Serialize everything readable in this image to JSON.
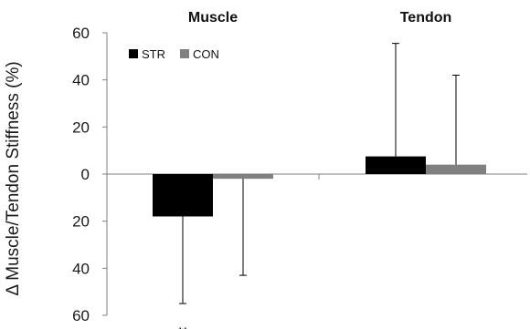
{
  "chart_data": {
    "type": "bar",
    "categories": [
      "Muscle",
      "Tendon"
    ],
    "series": [
      {
        "name": "STR",
        "color": "#000000",
        "values": [
          -18,
          7.5
        ],
        "error_low": [
          37,
          0
        ],
        "error_high": [
          0,
          48
        ]
      },
      {
        "name": "CON",
        "color": "#808080",
        "values": [
          -2,
          4
        ],
        "error_low": [
          41,
          0
        ],
        "error_high": [
          0,
          38
        ]
      }
    ],
    "ylabel": "Δ Muscle/Tendon Stiffness (%)",
    "xlabel": "",
    "ylim": [
      -60,
      60
    ],
    "yticks": [
      60,
      40,
      20,
      0,
      -20,
      -40,
      -60
    ],
    "ytick_labels": [
      "60",
      "40",
      "20",
      "0",
      "20",
      "40",
      "60"
    ],
    "grid": false,
    "legend": "top-left",
    "annotations": [
      {
        "text": "**",
        "category": "Muscle",
        "series": "STR"
      }
    ]
  }
}
